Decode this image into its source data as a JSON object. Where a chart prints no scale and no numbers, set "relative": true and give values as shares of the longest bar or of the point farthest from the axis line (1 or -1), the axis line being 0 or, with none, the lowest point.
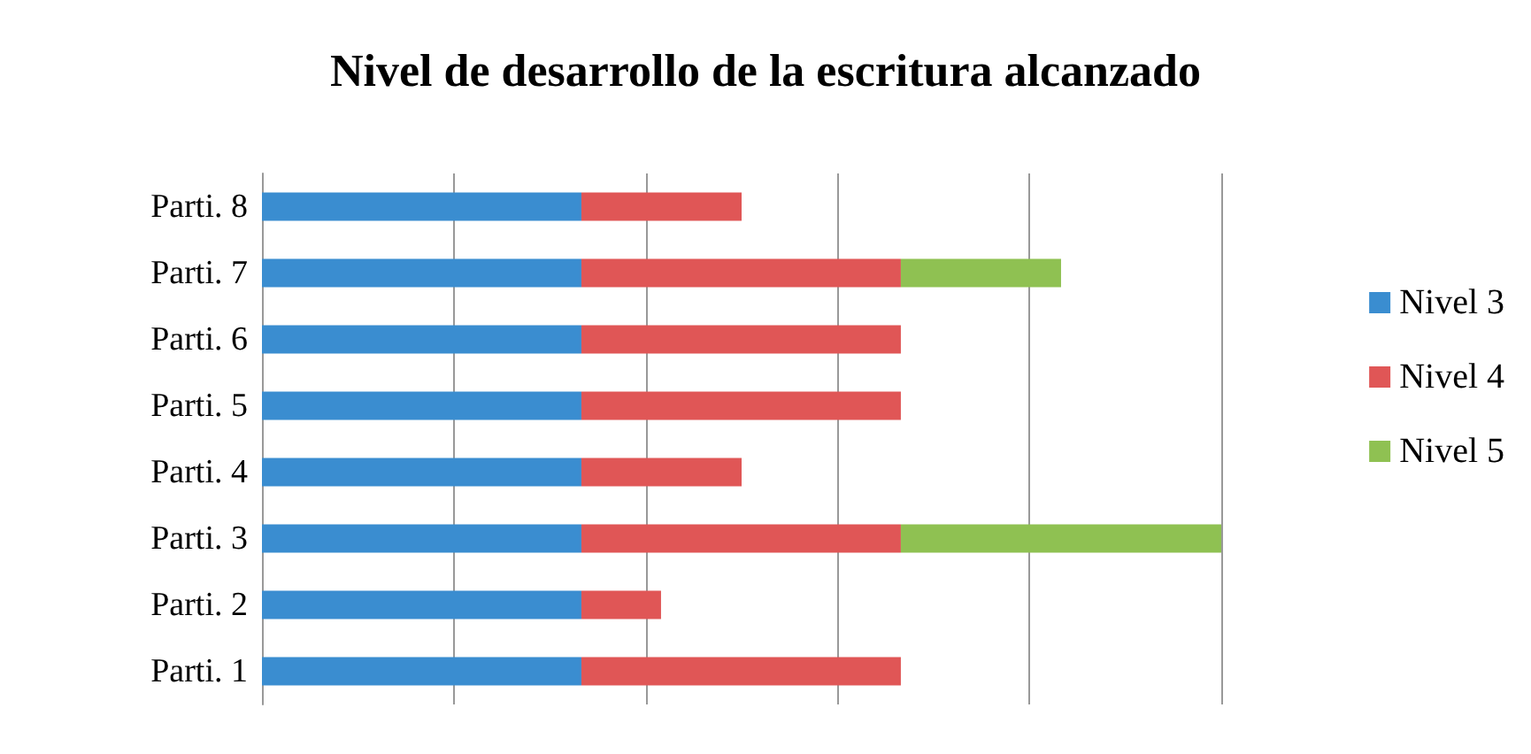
{
  "chart_data": {
    "type": "bar",
    "title": "Nivel de desarrollo de la escritura alcanzado",
    "orientation": "horizontal",
    "stacked": true,
    "relative": true,
    "grid": true,
    "legend": "right",
    "categories": [
      "Parti. 8",
      "Parti. 7",
      "Parti. 6",
      "Parti. 5",
      "Parti. 4",
      "Parti. 3",
      "Parti. 2",
      "Parti. 1"
    ],
    "series": [
      {
        "name": "Nivel 3",
        "color": "#3a8dd0",
        "values": [
          0.333,
          0.333,
          0.333,
          0.333,
          0.333,
          0.333,
          0.333,
          0.333
        ]
      },
      {
        "name": "Nivel 4",
        "color": "#e05656",
        "values": [
          0.167,
          0.333,
          0.333,
          0.333,
          0.167,
          0.333,
          0.083,
          0.333
        ]
      },
      {
        "name": "Nivel 5",
        "color": "#8fc152",
        "values": [
          null,
          0.167,
          null,
          null,
          null,
          0.334,
          null,
          null
        ]
      }
    ]
  }
}
